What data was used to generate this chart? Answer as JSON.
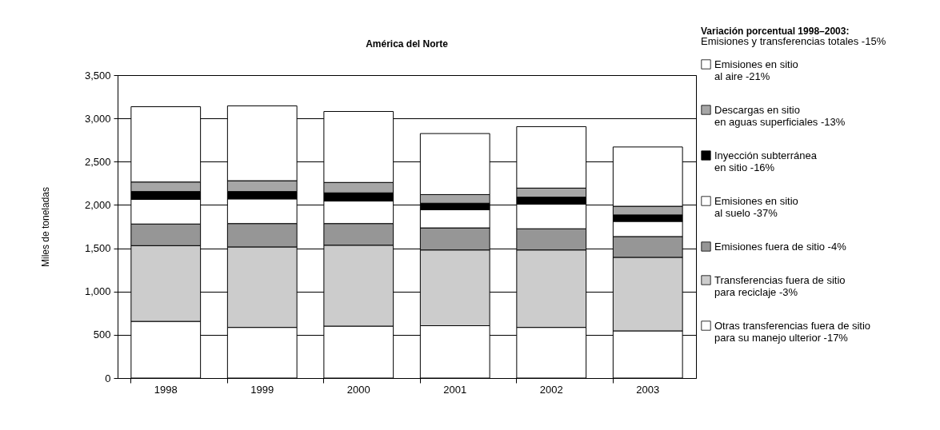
{
  "chart_data": {
    "type": "bar",
    "title": "América del Norte",
    "ylabel": "Miles de toneladas",
    "legend_title": "Variación porcentual 1998–2003:",
    "annotations": [
      "Emisiones y transferencias totales -15%"
    ],
    "categories": [
      "1998",
      "1999",
      "2000",
      "2001",
      "2002",
      "2003"
    ],
    "stacked": true,
    "series": [
      {
        "name": "Otras transferencias fuera de sitio\npara su manejo ulterior  -17%",
        "color": "#ffffff",
        "values": [
          655,
          585,
          600,
          605,
          585,
          545
        ]
      },
      {
        "name": "Transferencias fuera de sitio\npara reciclaje  -3%",
        "color": "#cccccc",
        "values": [
          875,
          930,
          935,
          875,
          895,
          850
        ]
      },
      {
        "name": "Emisiones fuera de sitio  -4%",
        "color": "#969696",
        "values": [
          250,
          270,
          250,
          255,
          245,
          240
        ]
      },
      {
        "name": "Emisiones en sitio\nal suelo -37%",
        "color": "#ffffff",
        "values": [
          285,
          285,
          260,
          210,
          285,
          175
        ]
      },
      {
        "name": "Inyección subterránea\nen sitio  -16%",
        "color": "#000000",
        "values": [
          90,
          85,
          95,
          75,
          80,
          75
        ]
      },
      {
        "name": "Descargas en sitio\nen aguas superficiales  -13%",
        "color": "#a6a6a6",
        "values": [
          110,
          125,
          120,
          100,
          105,
          100
        ]
      },
      {
        "name": "Emisiones en sitio\nal aire -21%",
        "color": "#ffffff",
        "values": [
          870,
          865,
          820,
          705,
          710,
          685
        ]
      }
    ],
    "ylim": [
      0,
      3500
    ],
    "yticks": [
      0,
      500,
      {
        "value": 1000,
        "label": "1,000"
      },
      {
        "value": 1500,
        "label": "1,500"
      },
      {
        "value": 2000,
        "label": "2,000"
      },
      {
        "value": 2500,
        "label": "2,500"
      },
      {
        "value": 3000,
        "label": "3,000"
      },
      {
        "value": 3500,
        "label": "3,500"
      }
    ],
    "grid": "y",
    "legend": "right"
  }
}
